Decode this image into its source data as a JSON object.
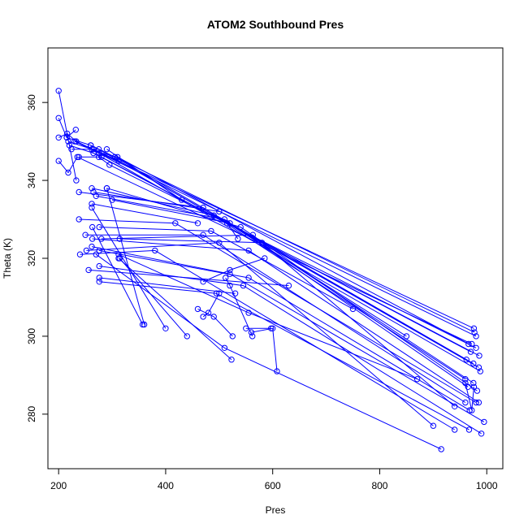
{
  "chart_data": {
    "type": "line",
    "title": "ATOM2 Southbound Pres",
    "xlabel": "Pres",
    "ylabel": "Theta (K)",
    "xlim": [
      180,
      1030
    ],
    "ylim": [
      266,
      374
    ],
    "xticks": [
      200,
      400,
      600,
      800,
      1000
    ],
    "yticks": [
      280,
      300,
      320,
      340,
      360
    ],
    "grid": false,
    "legend": "none",
    "line_color": "#0000ff",
    "marker": "open-circle",
    "series": [
      {
        "x": [
          200,
          233
        ],
        "y": [
          363,
          340
        ]
      },
      {
        "x": [
          200,
          215,
          232
        ],
        "y": [
          356,
          351,
          353
        ]
      },
      {
        "x": [
          200,
          216,
          233,
          976
        ],
        "y": [
          351,
          352,
          350,
          302
        ]
      },
      {
        "x": [
          200,
          218,
          235,
          972
        ],
        "y": [
          345,
          342,
          346,
          298
        ]
      },
      {
        "x": [
          215,
          260,
          977
        ],
        "y": [
          351,
          349,
          301
        ]
      },
      {
        "x": [
          218,
          262,
          980
        ],
        "y": [
          350,
          348,
          300
        ]
      },
      {
        "x": [
          220,
          265,
          986
        ],
        "y": [
          349,
          347,
          295
        ]
      },
      {
        "x": [
          224,
          275,
          985
        ],
        "y": [
          348,
          348,
          292
        ]
      },
      {
        "x": [
          230,
          276,
          988
        ],
        "y": [
          350,
          347,
          291
        ]
      },
      {
        "x": [
          238,
          280,
          970
        ],
        "y": [
          346,
          346,
          296
        ]
      },
      {
        "x": [
          260,
          305,
          975
        ],
        "y": [
          349,
          346,
          293
        ]
      },
      {
        "x": [
          265,
          312,
          962
        ],
        "y": [
          348,
          345,
          294
        ]
      },
      {
        "x": [
          275,
          295,
          980
        ],
        "y": [
          346,
          344,
          297
        ]
      },
      {
        "x": [
          280,
          310,
          966
        ],
        "y": [
          347,
          346,
          298
        ]
      },
      {
        "x": [
          290,
          430
        ],
        "y": [
          348,
          335
        ]
      },
      {
        "x": [
          238,
          470,
          850
        ],
        "y": [
          337,
          333,
          300
        ]
      },
      {
        "x": [
          262,
          490,
          960
        ],
        "y": [
          338,
          331,
          289
        ]
      },
      {
        "x": [
          265,
          500
        ],
        "y": [
          337,
          332
        ]
      },
      {
        "x": [
          270,
          510,
          965
        ],
        "y": [
          336,
          330,
          287
        ]
      },
      {
        "x": [
          290,
          540,
          982
        ],
        "y": [
          338,
          328,
          286
        ]
      },
      {
        "x": [
          300,
          520,
          975
        ],
        "y": [
          335,
          329,
          288
        ]
      },
      {
        "x": [
          262,
          460
        ],
        "y": [
          334,
          329
        ]
      },
      {
        "x": [
          238,
          418,
          980
        ],
        "y": [
          330,
          329,
          283
        ]
      },
      {
        "x": [
          250,
          470,
          960
        ],
        "y": [
          326,
          326,
          283
        ]
      },
      {
        "x": [
          263,
          555,
          985
        ],
        "y": [
          325,
          322,
          283
        ]
      },
      {
        "x": [
          276,
          485,
          750
        ],
        "y": [
          328,
          327,
          307
        ]
      },
      {
        "x": [
          240,
          380,
          940
        ],
        "y": [
          321,
          322,
          276
        ]
      },
      {
        "x": [
          252,
          500,
          900
        ],
        "y": [
          322,
          324,
          277
        ]
      },
      {
        "x": [
          262,
          520,
          995
        ],
        "y": [
          323,
          316,
          278
        ]
      },
      {
        "x": [
          276,
          555,
          968
        ],
        "y": [
          322,
          315,
          281
        ]
      },
      {
        "x": [
          280,
          563,
          940
        ],
        "y": [
          325,
          326,
          282
        ]
      },
      {
        "x": [
          314,
          580
        ],
        "y": [
          325,
          324
        ]
      },
      {
        "x": [
          256,
          630
        ],
        "y": [
          317,
          313
        ]
      },
      {
        "x": [
          276,
          545,
          990
        ],
        "y": [
          318,
          313,
          275
        ]
      },
      {
        "x": [
          276,
          530
        ],
        "y": [
          315,
          311
        ]
      },
      {
        "x": [
          276,
          495,
          967
        ],
        "y": [
          314,
          311,
          276
        ]
      },
      {
        "x": [
          312,
          555,
          870
        ],
        "y": [
          321,
          306,
          289
        ]
      },
      {
        "x": [
          314,
          440
        ],
        "y": [
          320,
          300
        ]
      },
      {
        "x": [
          270,
          510,
          915
        ],
        "y": [
          321,
          297,
          271
        ]
      },
      {
        "x": [
          262,
          400
        ],
        "y": [
          333,
          302
        ]
      },
      {
        "x": [
          290,
          360
        ],
        "y": [
          338,
          303
        ]
      },
      {
        "x": [
          312,
          523
        ],
        "y": [
          320,
          294
        ]
      },
      {
        "x": [
          263,
          357
        ],
        "y": [
          328,
          303
        ]
      },
      {
        "x": [
          460,
          490,
          525
        ],
        "y": [
          307,
          305,
          300
        ]
      },
      {
        "x": [
          470,
          480,
          500
        ],
        "y": [
          305,
          306,
          311
        ]
      },
      {
        "x": [
          560,
          600,
          608
        ],
        "y": [
          301,
          302,
          291
        ]
      },
      {
        "x": [
          512,
          520,
          562
        ],
        "y": [
          315,
          313,
          300
        ]
      },
      {
        "x": [
          550,
          597
        ],
        "y": [
          302,
          302
        ]
      },
      {
        "x": [
          470,
          520,
          585
        ],
        "y": [
          314,
          317,
          320
        ]
      },
      {
        "x": [
          515,
          535
        ],
        "y": [
          329,
          325
        ]
      },
      {
        "x": [
          960,
          972,
          976
        ],
        "y": [
          288,
          281,
          287
        ]
      }
    ]
  }
}
